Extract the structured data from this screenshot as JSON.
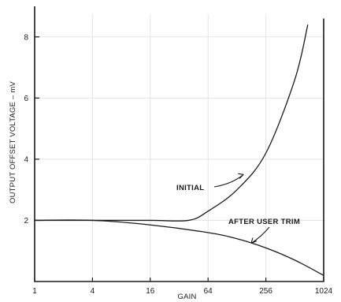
{
  "chart_data": {
    "type": "line",
    "title": "",
    "xlabel": "GAIN",
    "ylabel": "OUTPUT OFFSET VOLTAGE – mV",
    "x_scale": "log2",
    "xlim": [
      1,
      1024
    ],
    "ylim": [
      0,
      9
    ],
    "x_ticks": [
      1,
      4,
      16,
      64,
      256,
      1024
    ],
    "x_tick_labels": [
      "1",
      "4",
      "16",
      "64",
      "256",
      "1024"
    ],
    "y_ticks": [
      2,
      4,
      6,
      8
    ],
    "y_tick_labels": [
      "2",
      "4",
      "6",
      "8"
    ],
    "grid": true,
    "series": [
      {
        "name": "INITIAL",
        "x": [
          1,
          4,
          16,
          40,
          64,
          128,
          256,
          512,
          700
        ],
        "y": [
          2.0,
          2.0,
          2.0,
          2.0,
          2.3,
          3.0,
          4.2,
          6.6,
          8.4
        ]
      },
      {
        "name": "AFTER USER TRIM",
        "x": [
          1,
          4,
          16,
          64,
          128,
          256,
          512,
          1024
        ],
        "y": [
          2.0,
          2.0,
          1.85,
          1.6,
          1.4,
          1.1,
          0.7,
          0.2
        ]
      }
    ],
    "annotations": [
      {
        "text": "INITIAL",
        "points_to": {
          "x": 150,
          "y": 3.5
        }
      },
      {
        "text": "AFTER USER TRIM",
        "points_to": {
          "x": 180,
          "y": 1.25
        }
      }
    ]
  }
}
